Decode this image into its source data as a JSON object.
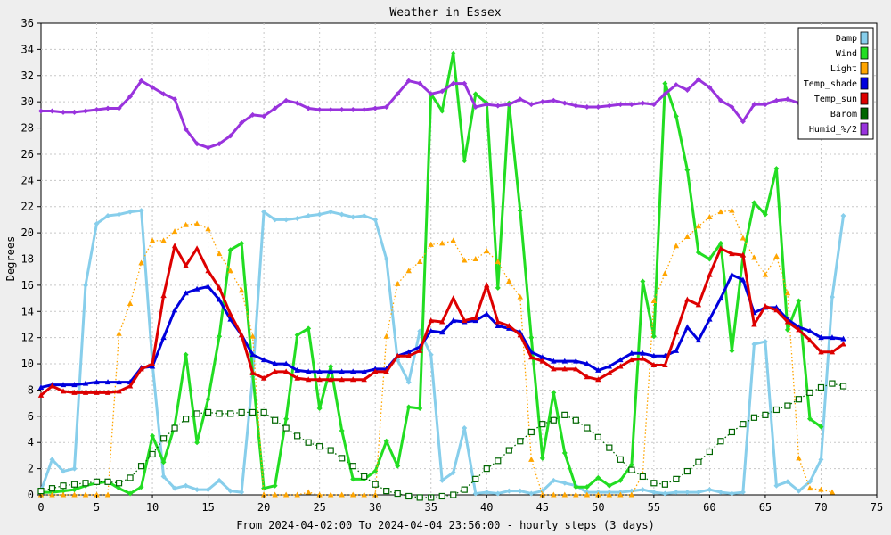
{
  "chart_data": {
    "type": "line",
    "title": "Weather in Essex",
    "xlabel": "From 2024-04-02:00 To 2024-04-04 23:56:00 - hourly steps (3 days)",
    "ylabel": "Degrees",
    "xlim": [
      0,
      75
    ],
    "ylim": [
      0,
      36
    ],
    "x_ticks": [
      0,
      5,
      10,
      15,
      20,
      25,
      30,
      35,
      40,
      45,
      50,
      55,
      60,
      65,
      70,
      75
    ],
    "y_ticks": [
      0,
      2,
      4,
      6,
      8,
      10,
      12,
      14,
      16,
      18,
      20,
      22,
      24,
      26,
      28,
      30,
      32,
      34,
      36
    ],
    "grid": true,
    "legend_position": "top-right",
    "series": [
      {
        "name": "Damp",
        "color": "#87ceeb",
        "style": "solid",
        "marker": "diamond",
        "values": [
          0.3,
          2.7,
          1.8,
          2.0,
          16.0,
          20.7,
          21.3,
          21.4,
          21.6,
          21.7,
          10.0,
          1.4,
          0.5,
          0.7,
          0.4,
          0.4,
          1.1,
          0.3,
          0.2,
          9.0,
          21.6,
          21.0,
          21.0,
          21.1,
          21.3,
          21.4,
          21.6,
          21.4,
          21.2,
          21.3,
          21.0,
          18.0,
          10.3,
          8.6,
          12.5,
          10.7,
          1.1,
          1.7,
          5.1,
          0.1,
          0.2,
          0.1,
          0.3,
          0.3,
          0.1,
          0.3,
          1.1,
          0.9,
          0.7,
          0.2,
          0.2,
          0.2,
          0.2,
          0.3,
          0.4,
          0.2,
          0.1,
          0.2,
          0.2,
          0.2,
          0.4,
          0.2,
          0.1,
          0.2,
          11.5,
          11.7,
          0.7,
          1.0,
          0.3,
          1.0,
          2.7,
          15.1,
          21.3
        ]
      },
      {
        "name": "Wind",
        "color": "#22dd22",
        "style": "solid",
        "marker": "diamond",
        "values": [
          0.2,
          0.2,
          0.3,
          0.4,
          0.7,
          0.9,
          1.0,
          0.5,
          0.1,
          0.6,
          4.5,
          2.5,
          5.3,
          10.7,
          4.0,
          7.3,
          12.1,
          18.7,
          19.2,
          9.3,
          0.5,
          0.7,
          5.8,
          12.2,
          12.7,
          6.6,
          9.8,
          4.9,
          1.2,
          1.2,
          1.8,
          4.1,
          2.2,
          6.7,
          6.6,
          30.6,
          29.3,
          33.7,
          25.5,
          30.6,
          29.9,
          15.8,
          29.9,
          21.7,
          12.0,
          2.8,
          7.8,
          3.2,
          0.6,
          0.6,
          1.3,
          0.7,
          1.1,
          2.3,
          16.3,
          12.1,
          31.4,
          28.9,
          24.8,
          18.5,
          18.0,
          19.2,
          11.0,
          18.2,
          22.3,
          21.4,
          24.9,
          12.6,
          14.8,
          5.8,
          5.2
        ]
      },
      {
        "name": "Light",
        "color": "#ffa500",
        "style": "dotted",
        "marker": "triangle",
        "values": [
          0.0,
          0.0,
          0.0,
          0.0,
          0.0,
          0.0,
          0.0,
          12.3,
          14.6,
          17.7,
          19.4,
          19.4,
          20.1,
          20.6,
          20.7,
          20.3,
          18.4,
          17.1,
          15.6,
          12.1,
          0.0,
          0.0,
          0.0,
          0.0,
          0.2,
          0.0,
          0.0,
          0.0,
          0.0,
          0.0,
          0.0,
          12.1,
          16.1,
          17.1,
          17.8,
          19.1,
          19.2,
          19.4,
          17.9,
          18.0,
          18.6,
          17.8,
          16.3,
          15.1,
          2.7,
          0.0,
          0.0,
          0.0,
          0.0,
          0.0,
          0.0,
          0.0,
          0.0,
          0.0,
          1.6,
          14.8,
          16.9,
          19.0,
          19.7,
          20.5,
          21.2,
          21.6,
          21.7,
          19.6,
          18.1,
          16.8,
          18.2,
          15.4,
          2.8,
          0.5,
          0.4,
          0.2
        ]
      },
      {
        "name": "Temp_shade",
        "color": "#0000dd",
        "style": "solid",
        "marker": "triangle",
        "values": [
          8.2,
          8.4,
          8.4,
          8.4,
          8.5,
          8.6,
          8.6,
          8.6,
          8.6,
          9.7,
          9.8,
          12.0,
          14.1,
          15.4,
          15.7,
          15.9,
          14.9,
          13.4,
          12.2,
          10.7,
          10.3,
          10.0,
          10.0,
          9.5,
          9.4,
          9.4,
          9.4,
          9.4,
          9.4,
          9.4,
          9.6,
          9.6,
          10.6,
          10.9,
          11.3,
          12.5,
          12.4,
          13.3,
          13.2,
          13.3,
          13.8,
          12.9,
          12.7,
          12.4,
          10.9,
          10.5,
          10.2,
          10.2,
          10.2,
          10.0,
          9.5,
          9.8,
          10.3,
          10.8,
          10.8,
          10.6,
          10.6,
          11.0,
          12.8,
          11.8,
          13.4,
          15.0,
          16.8,
          16.4,
          13.9,
          14.3,
          14.3,
          13.4,
          12.8,
          12.5,
          12.0,
          12.0,
          11.9
        ]
      },
      {
        "name": "Temp_sun",
        "color": "#dd0000",
        "style": "solid",
        "marker": "triangle",
        "values": [
          7.6,
          8.3,
          7.9,
          7.8,
          7.8,
          7.8,
          7.8,
          7.9,
          8.3,
          9.6,
          10.0,
          15.2,
          19.0,
          17.5,
          18.8,
          17.1,
          15.8,
          13.8,
          12.2,
          9.3,
          8.9,
          9.4,
          9.4,
          8.9,
          8.8,
          8.8,
          8.8,
          8.8,
          8.8,
          8.8,
          9.4,
          9.4,
          10.6,
          10.6,
          11.0,
          13.3,
          13.2,
          15.0,
          13.3,
          13.5,
          16.0,
          13.2,
          12.9,
          12.2,
          10.5,
          10.2,
          9.6,
          9.6,
          9.6,
          9.0,
          8.8,
          9.3,
          9.8,
          10.3,
          10.4,
          9.9,
          9.9,
          12.4,
          14.9,
          14.5,
          16.8,
          18.8,
          18.4,
          18.3,
          13.0,
          14.4,
          14.1,
          13.2,
          12.6,
          11.8,
          10.9,
          10.9,
          11.5
        ]
      },
      {
        "name": "Barom",
        "color": "#006600",
        "style": "dotted",
        "marker": "square",
        "values": [
          0.3,
          0.5,
          0.7,
          0.8,
          0.9,
          1.0,
          1.0,
          0.9,
          1.3,
          2.2,
          3.1,
          4.3,
          5.1,
          5.8,
          6.2,
          6.3,
          6.2,
          6.2,
          6.3,
          6.3,
          6.3,
          5.7,
          5.1,
          4.5,
          4.0,
          3.7,
          3.4,
          2.8,
          2.2,
          1.4,
          0.8,
          0.3,
          0.1,
          -0.1,
          -0.2,
          -0.2,
          -0.1,
          0.0,
          0.4,
          1.2,
          2.0,
          2.6,
          3.4,
          4.1,
          4.8,
          5.4,
          5.7,
          6.1,
          5.7,
          5.1,
          4.4,
          3.6,
          2.7,
          1.9,
          1.4,
          0.9,
          0.8,
          1.2,
          1.8,
          2.5,
          3.3,
          4.1,
          4.8,
          5.4,
          5.9,
          6.1,
          6.5,
          6.8,
          7.3,
          7.8,
          8.2,
          8.5,
          8.3
        ]
      },
      {
        "name": "Humid_%/2",
        "color": "#9933dd",
        "style": "solid",
        "marker": "diamond",
        "values": [
          29.3,
          29.3,
          29.2,
          29.2,
          29.3,
          29.4,
          29.5,
          29.5,
          30.4,
          31.6,
          31.1,
          30.6,
          30.2,
          27.9,
          26.8,
          26.5,
          26.8,
          27.4,
          28.4,
          29.0,
          28.9,
          29.5,
          30.1,
          29.9,
          29.5,
          29.4,
          29.4,
          29.4,
          29.4,
          29.4,
          29.5,
          29.6,
          30.6,
          31.6,
          31.4,
          30.6,
          30.8,
          31.4,
          31.4,
          29.6,
          29.8,
          29.7,
          29.8,
          30.2,
          29.8,
          30.0,
          30.1,
          29.9,
          29.7,
          29.6,
          29.6,
          29.7,
          29.8,
          29.8,
          29.9,
          29.8,
          30.6,
          31.3,
          30.9,
          31.7,
          31.1,
          30.1,
          29.6,
          28.5,
          29.8,
          29.8,
          30.1,
          30.2,
          29.9,
          29.1
        ]
      }
    ]
  }
}
